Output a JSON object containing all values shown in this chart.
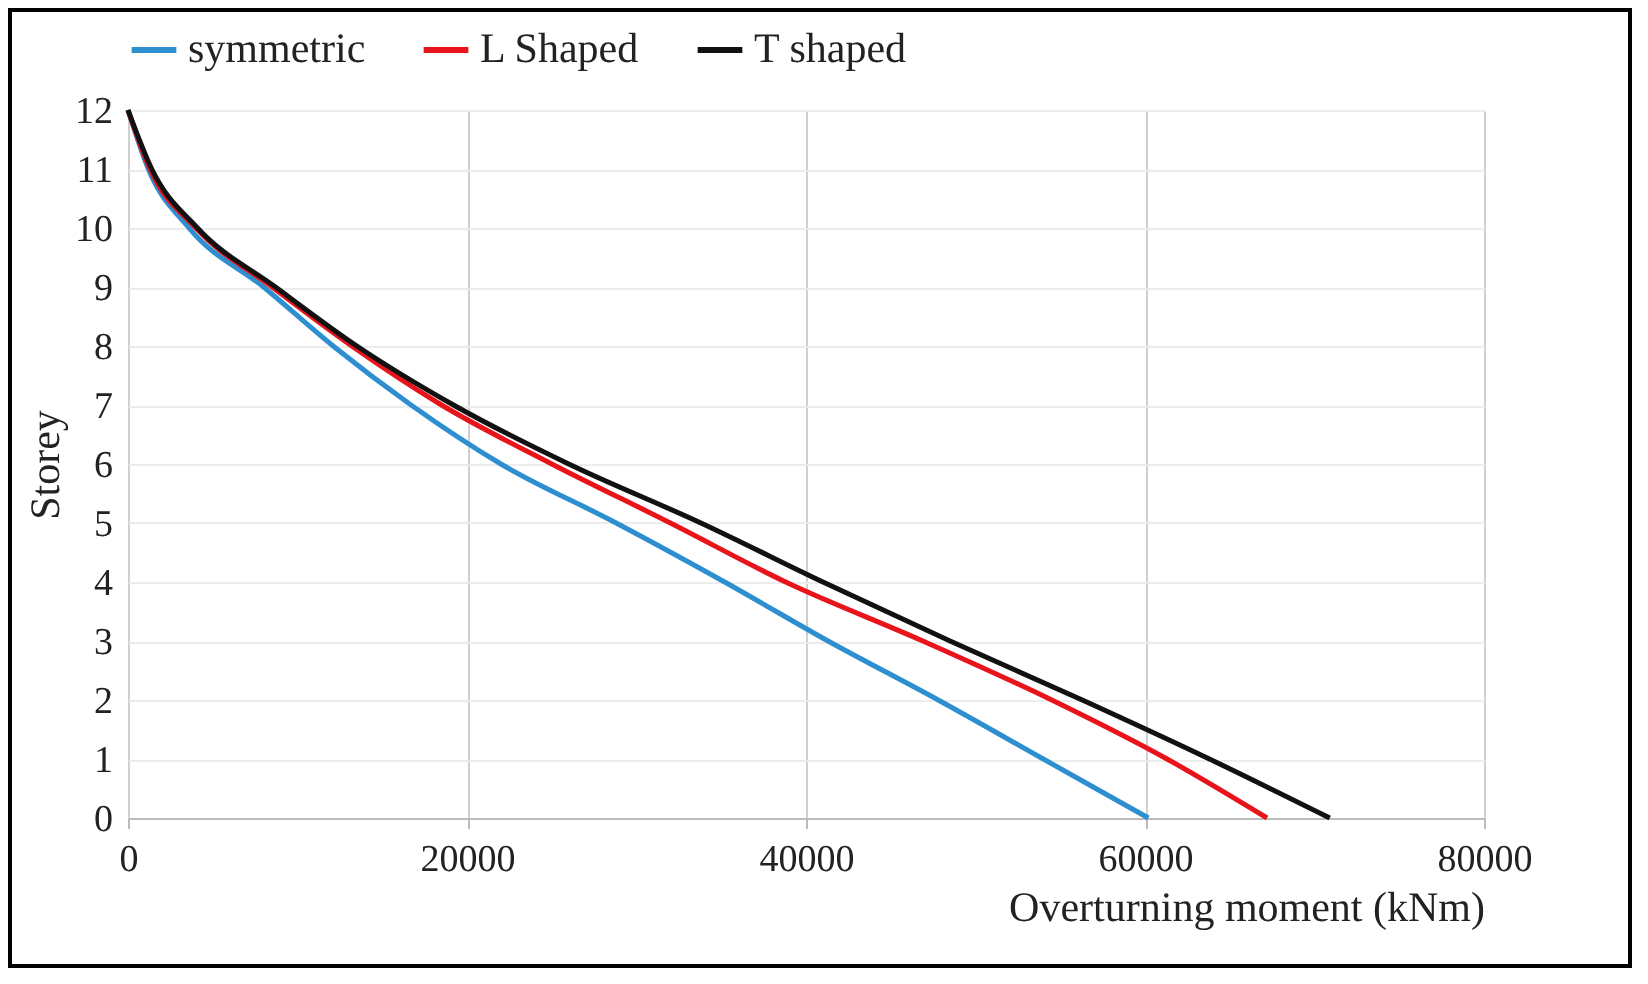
{
  "chart_data": {
    "type": "line",
    "xlabel": "Overturning moment (kNm)",
    "ylabel": "Storey",
    "series": [
      {
        "name": "symmetric",
        "color": "#2e8fd0",
        "x": [
          60200,
          54000,
          47800,
          41300,
          35200,
          28800,
          22000,
          16700,
          12100,
          8000,
          3600,
          1200,
          0
        ],
        "values": [
          0,
          1,
          2,
          3,
          4,
          5,
          6,
          7,
          8,
          9,
          10,
          11,
          12
        ]
      },
      {
        "name": "L Shaped",
        "color": "#e8141c",
        "x": [
          67200,
          61300,
          54500,
          46900,
          38800,
          32000,
          25000,
          18500,
          13200,
          8500,
          4000,
          1300,
          0
        ],
        "values": [
          0,
          1,
          2,
          3,
          4,
          5,
          6,
          7,
          8,
          9,
          10,
          11,
          12
        ]
      },
      {
        "name": "T shaped",
        "color": "#111111",
        "x": [
          70900,
          63800,
          56300,
          48500,
          41000,
          33800,
          26000,
          19200,
          13500,
          8700,
          4100,
          1400,
          0
        ],
        "values": [
          0,
          1,
          2,
          3,
          4,
          5,
          6,
          7,
          8,
          9,
          10,
          11,
          12
        ]
      }
    ],
    "xlim": [
      0,
      80000
    ],
    "xticks": [
      0,
      20000,
      40000,
      60000,
      80000
    ],
    "ylim": [
      0,
      12
    ],
    "yticks": [
      0,
      1,
      2,
      3,
      4,
      5,
      6,
      7,
      8,
      9,
      10,
      11,
      12
    ],
    "grid": true,
    "legend": "top",
    "marker": "none",
    "line_style": "solid"
  }
}
